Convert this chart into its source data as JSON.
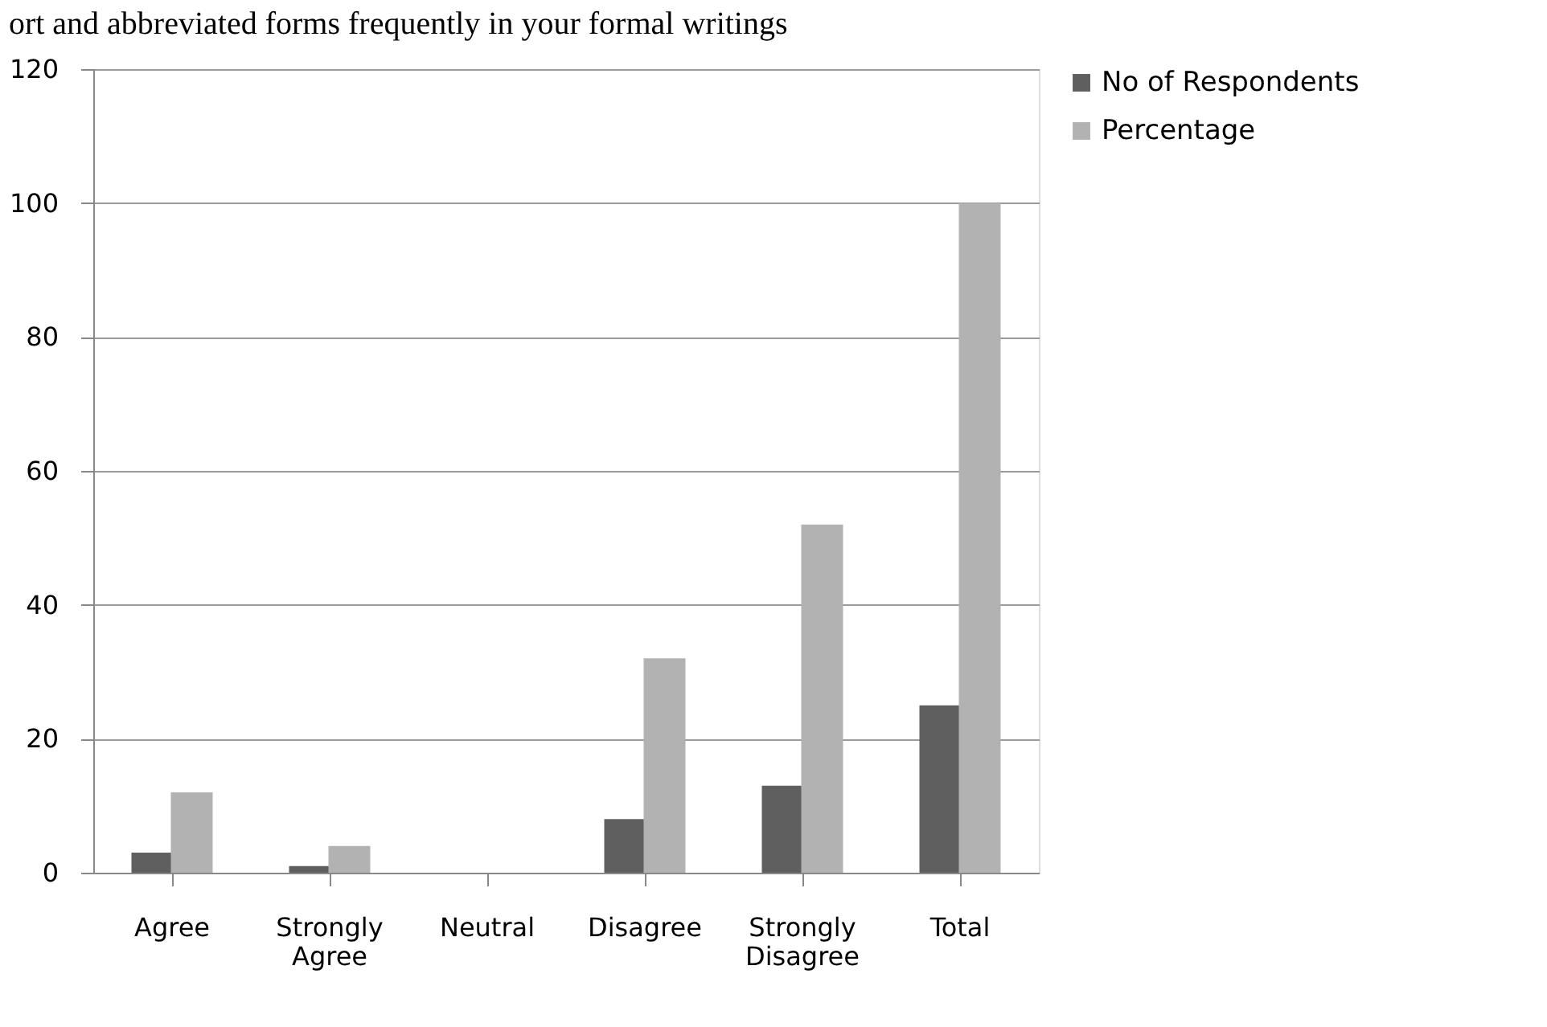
{
  "chart_data": {
    "type": "bar",
    "title": "ort and abbreviated forms frequently in your formal writings",
    "categories": [
      "Agree",
      "Strongly Agree",
      "Neutral",
      "Disagree",
      "Strongly Disagree",
      "Total"
    ],
    "series": [
      {
        "name": "No of Respondents",
        "color": "#5f5f5f",
        "values": [
          3,
          1,
          0,
          8,
          13,
          25
        ]
      },
      {
        "name": "Percentage",
        "color": "#b2b2b2",
        "values": [
          12,
          4,
          0,
          32,
          52,
          100
        ]
      }
    ],
    "ylim": [
      0,
      120
    ],
    "yticks": [
      0,
      20,
      40,
      60,
      80,
      100,
      120
    ],
    "grid": "y",
    "legend": "right"
  }
}
